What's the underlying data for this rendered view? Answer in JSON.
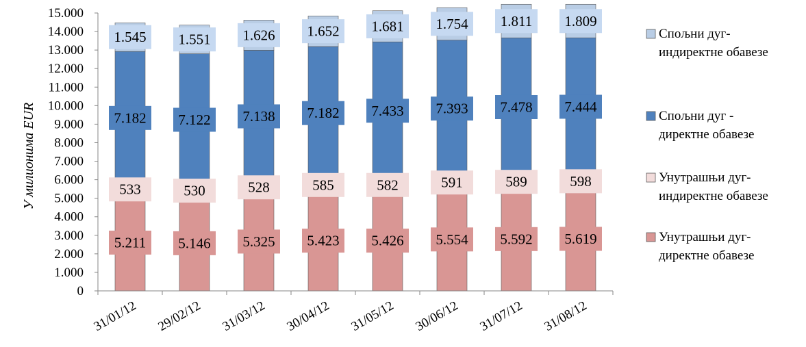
{
  "chart_data": {
    "type": "bar",
    "stacked": true,
    "categories": [
      "31/01/12",
      "29/02/12",
      "31/03/12",
      "30/04/12",
      "31/05/12",
      "30/06/12",
      "31/07/12",
      "31/08/12"
    ],
    "series": [
      {
        "name": "Унутрашњи дуг-директне обавезе",
        "legend_lines": [
          "Унутрашњи дуг-",
          "директне обавезе"
        ],
        "values": [
          5211,
          5146,
          5325,
          5423,
          5426,
          5554,
          5592,
          5619
        ],
        "labels": [
          "5.211",
          "5.146",
          "5.325",
          "5.423",
          "5.426",
          "5.554",
          "5.592",
          "5.619"
        ],
        "color": "#d99694",
        "label_bg": "#d99694"
      },
      {
        "name": "Унутрашњи дуг-индиректне обавезе",
        "legend_lines": [
          "Унутрашњи дуг-",
          "индиректне обавезе"
        ],
        "values": [
          533,
          530,
          528,
          585,
          582,
          591,
          589,
          598
        ],
        "labels": [
          "533",
          "530",
          "528",
          "585",
          "582",
          "591",
          "589",
          "598"
        ],
        "color": "#f2dcdb",
        "label_bg": "#f2dcdb"
      },
      {
        "name": "Спољни дуг - директне обавезе",
        "legend_lines": [
          "Спољни дуг -",
          "директне обавезе"
        ],
        "values": [
          7182,
          7122,
          7138,
          7182,
          7433,
          7393,
          7478,
          7444
        ],
        "labels": [
          "7.182",
          "7.122",
          "7.138",
          "7.182",
          "7.433",
          "7.393",
          "7.478",
          "7.444"
        ],
        "color": "#4f81bd",
        "label_bg": "#4f81bd"
      },
      {
        "name": "Спољни дуг-индиректне обавезе",
        "legend_lines": [
          "Спољни дуг-",
          "индиректне обавезе"
        ],
        "values": [
          1545,
          1551,
          1626,
          1652,
          1681,
          1754,
          1811,
          1809
        ],
        "labels": [
          "1.545",
          "1.551",
          "1.626",
          "1.652",
          "1.681",
          "1.754",
          "1.811",
          "1.809"
        ],
        "color": "#b9cde5",
        "label_bg": "#c6d9f1"
      }
    ],
    "ylabel": "У милионима EUR",
    "ylim": [
      0,
      15000
    ],
    "yticks": [
      {
        "value": 0,
        "label": "0"
      },
      {
        "value": 1000,
        "label": "1.000"
      },
      {
        "value": 2000,
        "label": "2.000"
      },
      {
        "value": 3000,
        "label": "3.000"
      },
      {
        "value": 4000,
        "label": "4.000"
      },
      {
        "value": 5000,
        "label": "5.000"
      },
      {
        "value": 6000,
        "label": "6.000"
      },
      {
        "value": 7000,
        "label": "7.000"
      },
      {
        "value": 8000,
        "label": "8.000"
      },
      {
        "value": 9000,
        "label": "9.000"
      },
      {
        "value": 10000,
        "label": "10.000"
      },
      {
        "value": 11000,
        "label": "11.000"
      },
      {
        "value": 12000,
        "label": "12.000"
      },
      {
        "value": 13000,
        "label": "13.000"
      },
      {
        "value": 14000,
        "label": "14.000"
      },
      {
        "value": 15000,
        "label": "15.000"
      }
    ],
    "legend_order": [
      3,
      2,
      1,
      0
    ],
    "legend_position": "right",
    "grid": false
  }
}
